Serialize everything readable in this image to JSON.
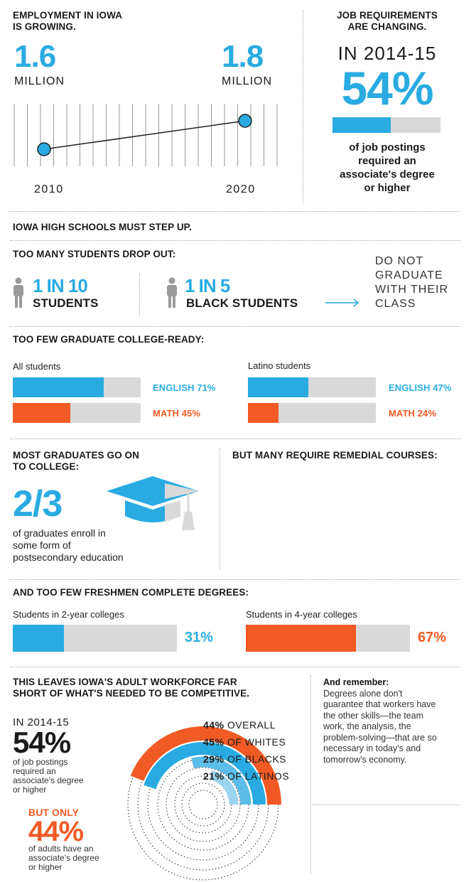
{
  "colors": {
    "blue": "#29abe2",
    "orange": "#f15a24",
    "gray": "#d9d9d9",
    "dark": "#1a1a1a"
  },
  "employment": {
    "heading_1": "EMPLOYMENT IN IOWA",
    "heading_2": "IS GROWING.",
    "start_value": "1.6",
    "end_value": "1.8",
    "unit": "MILLION",
    "start_year": "2010",
    "end_year": "2020"
  },
  "jobs": {
    "heading_1": "JOB REQUIREMENTS",
    "heading_2": "ARE CHANGING.",
    "period": "IN 2014-15",
    "percent": "54%",
    "fraction": 0.54,
    "caption_1": "of job postings",
    "caption_2": "required an",
    "caption_3": "associate's degree",
    "caption_4": "or higher"
  },
  "high_schools": {
    "heading": "IOWA HIGH SCHOOLS MUST STEP UP."
  },
  "dropout": {
    "heading": "TOO MANY STUDENTS DROP OUT:",
    "a_ratio": "1 IN 10",
    "a_label": "STUDENTS",
    "b_ratio": "1 IN 5",
    "b_label": "BLACK STUDENTS",
    "note_1": "DO NOT",
    "note_2": "GRADUATE",
    "note_3": "WITH THEIR",
    "note_4": "CLASS"
  },
  "college_ready": {
    "heading": "TOO FEW GRADUATE COLLEGE-READY:",
    "all_label": "All students",
    "latino_label": "Latino students",
    "all_english_label": "ENGLISH 71%",
    "all_math_label": "MATH 45%",
    "latino_english_label": "ENGLISH 47%",
    "latino_math_label": "MATH 24%"
  },
  "enroll": {
    "heading_1": "MOST GRADUATES GO ON",
    "heading_2": "TO COLLEGE:",
    "fraction": "2/3",
    "caption_1": "of graduates enroll in",
    "caption_2": "some form of",
    "caption_3": "postsecondary education",
    "remedial_heading": "BUT MANY REQUIRE REMEDIAL COURSES:"
  },
  "complete": {
    "heading": "AND TOO FEW FRESHMEN COMPLETE DEGREES:",
    "two_year_label": "Students in 2-year colleges",
    "two_year_pct": "31%",
    "four_year_label": "Students in 4-year colleges",
    "four_year_pct": "67%"
  },
  "workforce": {
    "heading_1": "THIS LEAVES IOWA'S ADULT WORKFORCE FAR",
    "heading_2": "SHORT OF WHAT'S NEEDED TO BE COMPETITIVE.",
    "period": "IN 2014-15",
    "postings_pct": "54%",
    "postings_1": "of job postings",
    "postings_2": "required an",
    "postings_3": "associate's degree",
    "postings_4": "or higher",
    "but_only": "BUT ONLY",
    "adults_pct": "44%",
    "adults_1": "of adults have an",
    "adults_2": "associate's degree",
    "adults_3": "or higher",
    "remember_title": "And remember:",
    "remember_1": "Degrees alone don't",
    "remember_2": "guarantee that workers have",
    "remember_3": "the other skills—the team",
    "remember_4": "work, the analysis, the",
    "remember_5": "problem-solving—that are so",
    "remember_6": "necessary in today's and",
    "remember_7": "tomorrow's economy."
  },
  "chart_data": [
    {
      "type": "line",
      "title": "EMPLOYMENT IN IOWA IS GROWING.",
      "x": [
        2010,
        2020
      ],
      "y": [
        1.6,
        1.8
      ],
      "ylabel": "MILLION"
    },
    {
      "type": "bar",
      "title": "All students",
      "categories": [
        "ENGLISH",
        "MATH"
      ],
      "values": [
        71,
        45
      ],
      "colors": [
        "#29abe2",
        "#f15a24"
      ],
      "ylim": [
        0,
        100
      ]
    },
    {
      "type": "bar",
      "title": "Latino students",
      "categories": [
        "ENGLISH",
        "MATH"
      ],
      "values": [
        47,
        24
      ],
      "colors": [
        "#29abe2",
        "#f15a24"
      ],
      "ylim": [
        0,
        100
      ]
    },
    {
      "type": "bar",
      "title": "AND TOO FEW FRESHMEN COMPLETE DEGREES:",
      "categories": [
        "Students in 2-year colleges",
        "Students in 4-year colleges"
      ],
      "values": [
        31,
        67
      ],
      "colors": [
        "#29abe2",
        "#f15a24"
      ],
      "ylim": [
        0,
        100
      ]
    },
    {
      "type": "pie",
      "categories": [
        "OVERALL",
        "OF WHITES",
        "OF BLACKS",
        "OF LATINOS"
      ],
      "values": [
        44,
        45,
        29,
        21
      ],
      "labels": [
        "44%",
        "45%",
        "29%",
        "21%"
      ],
      "colors": [
        "#f15a24",
        "#29abe2",
        "#5cbde8",
        "#9ad4f0"
      ],
      "ylim": [
        0,
        100
      ]
    }
  ]
}
